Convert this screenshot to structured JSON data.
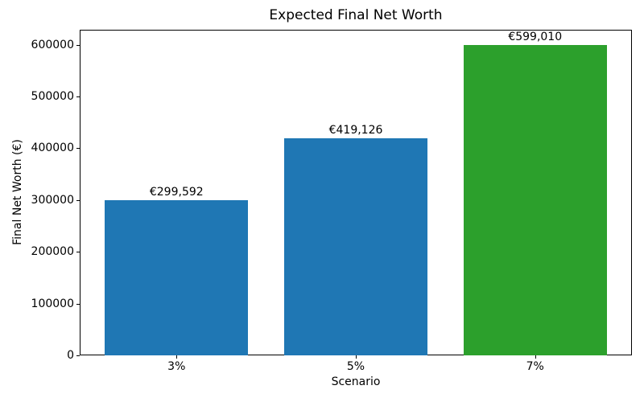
{
  "chart_data": {
    "type": "bar",
    "title": "Expected Final Net Worth",
    "xlabel": "Scenario",
    "ylabel": "Final Net Worth (€)",
    "categories": [
      "3%",
      "5%",
      "7%"
    ],
    "values": [
      299592,
      419126,
      599010
    ],
    "value_labels": [
      "€299,592",
      "€419,126",
      "€599,010"
    ],
    "bar_colors": [
      "#1f77b4",
      "#1f77b4",
      "#2ca02c"
    ],
    "ylim": [
      0,
      629000
    ],
    "yticks": [
      0,
      100000,
      200000,
      300000,
      400000,
      500000,
      600000
    ],
    "ytick_labels": [
      "0",
      "100000",
      "200000",
      "300000",
      "400000",
      "500000",
      "600000"
    ],
    "bar_width_fraction": 0.8,
    "x_margin_units": 0.14,
    "grid": false,
    "legend": null,
    "colors": {
      "axis": "#000000",
      "text": "#000000",
      "background": "#ffffff"
    }
  }
}
